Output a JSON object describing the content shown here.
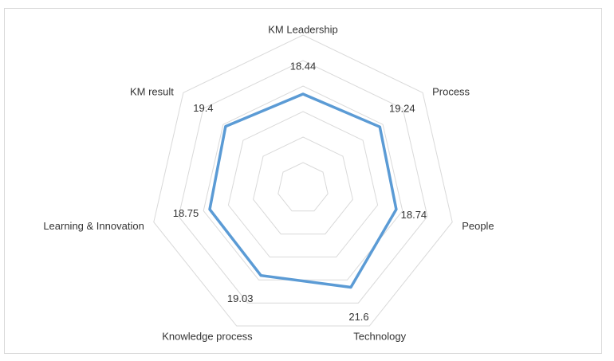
{
  "chart_data": {
    "type": "radar",
    "title": "",
    "categories": [
      "KM Leadership",
      "Process",
      "People",
      "Technology",
      "Knowledge process",
      "Learning & Innovation",
      "KM result"
    ],
    "series": [
      {
        "values": [
          18.44,
          19.24,
          18.74,
          21.6,
          19.03,
          18.75,
          19.4
        ],
        "color": "#5b9bd5"
      }
    ],
    "value_labels": [
      "18.44",
      "19.24",
      "18.74",
      "21.6",
      "19.03",
      "18.75",
      "19.4"
    ],
    "rlim": [
      0,
      30
    ],
    "grid_levels": 6,
    "legend": "none",
    "grid": true
  }
}
